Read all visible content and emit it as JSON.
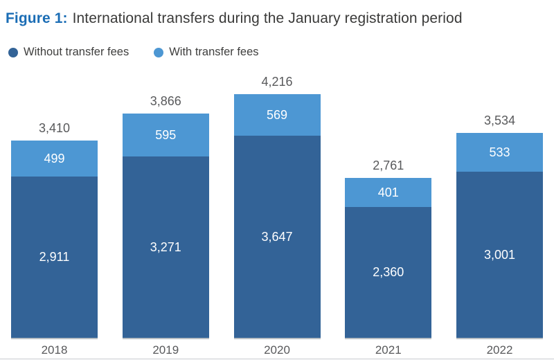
{
  "figure": {
    "label": "Figure 1:",
    "title": "International transfers during the January registration period"
  },
  "legend": [
    {
      "label": "Without transfer fees",
      "color": "#336397"
    },
    {
      "label": "With transfer fees",
      "color": "#4d97d3"
    }
  ],
  "colors": {
    "figure_label_blue": "#1b6db5",
    "dark_series": "#336397",
    "light_series": "#4d97d3",
    "axis_text_gray": "#58595b"
  },
  "chart_data": {
    "type": "bar",
    "stacked": true,
    "title": "Figure 1: International transfers during the January registration period",
    "categories": [
      "2018",
      "2019",
      "2020",
      "2021",
      "2022"
    ],
    "series": [
      {
        "name": "Without transfer fees",
        "color": "#336397",
        "values": [
          2911,
          3271,
          3647,
          2360,
          3001
        ],
        "labels": [
          "2,911",
          "3,271",
          "3,647",
          "2,360",
          "3,001"
        ]
      },
      {
        "name": "With transfer fees",
        "color": "#4d97d3",
        "values": [
          499,
          595,
          569,
          401,
          533
        ],
        "labels": [
          "499",
          "595",
          "569",
          "401",
          "533"
        ]
      }
    ],
    "totals": [
      3410,
      3866,
      4216,
      2761,
      3534
    ],
    "total_labels": [
      "3,410",
      "3,866",
      "4,216",
      "2,761",
      "3,534"
    ],
    "xlabel": "",
    "ylabel": "",
    "value_axis_visible": false,
    "grid": false,
    "legend_position": "top-left",
    "data_labels": "inside-segments-and-total-above"
  }
}
